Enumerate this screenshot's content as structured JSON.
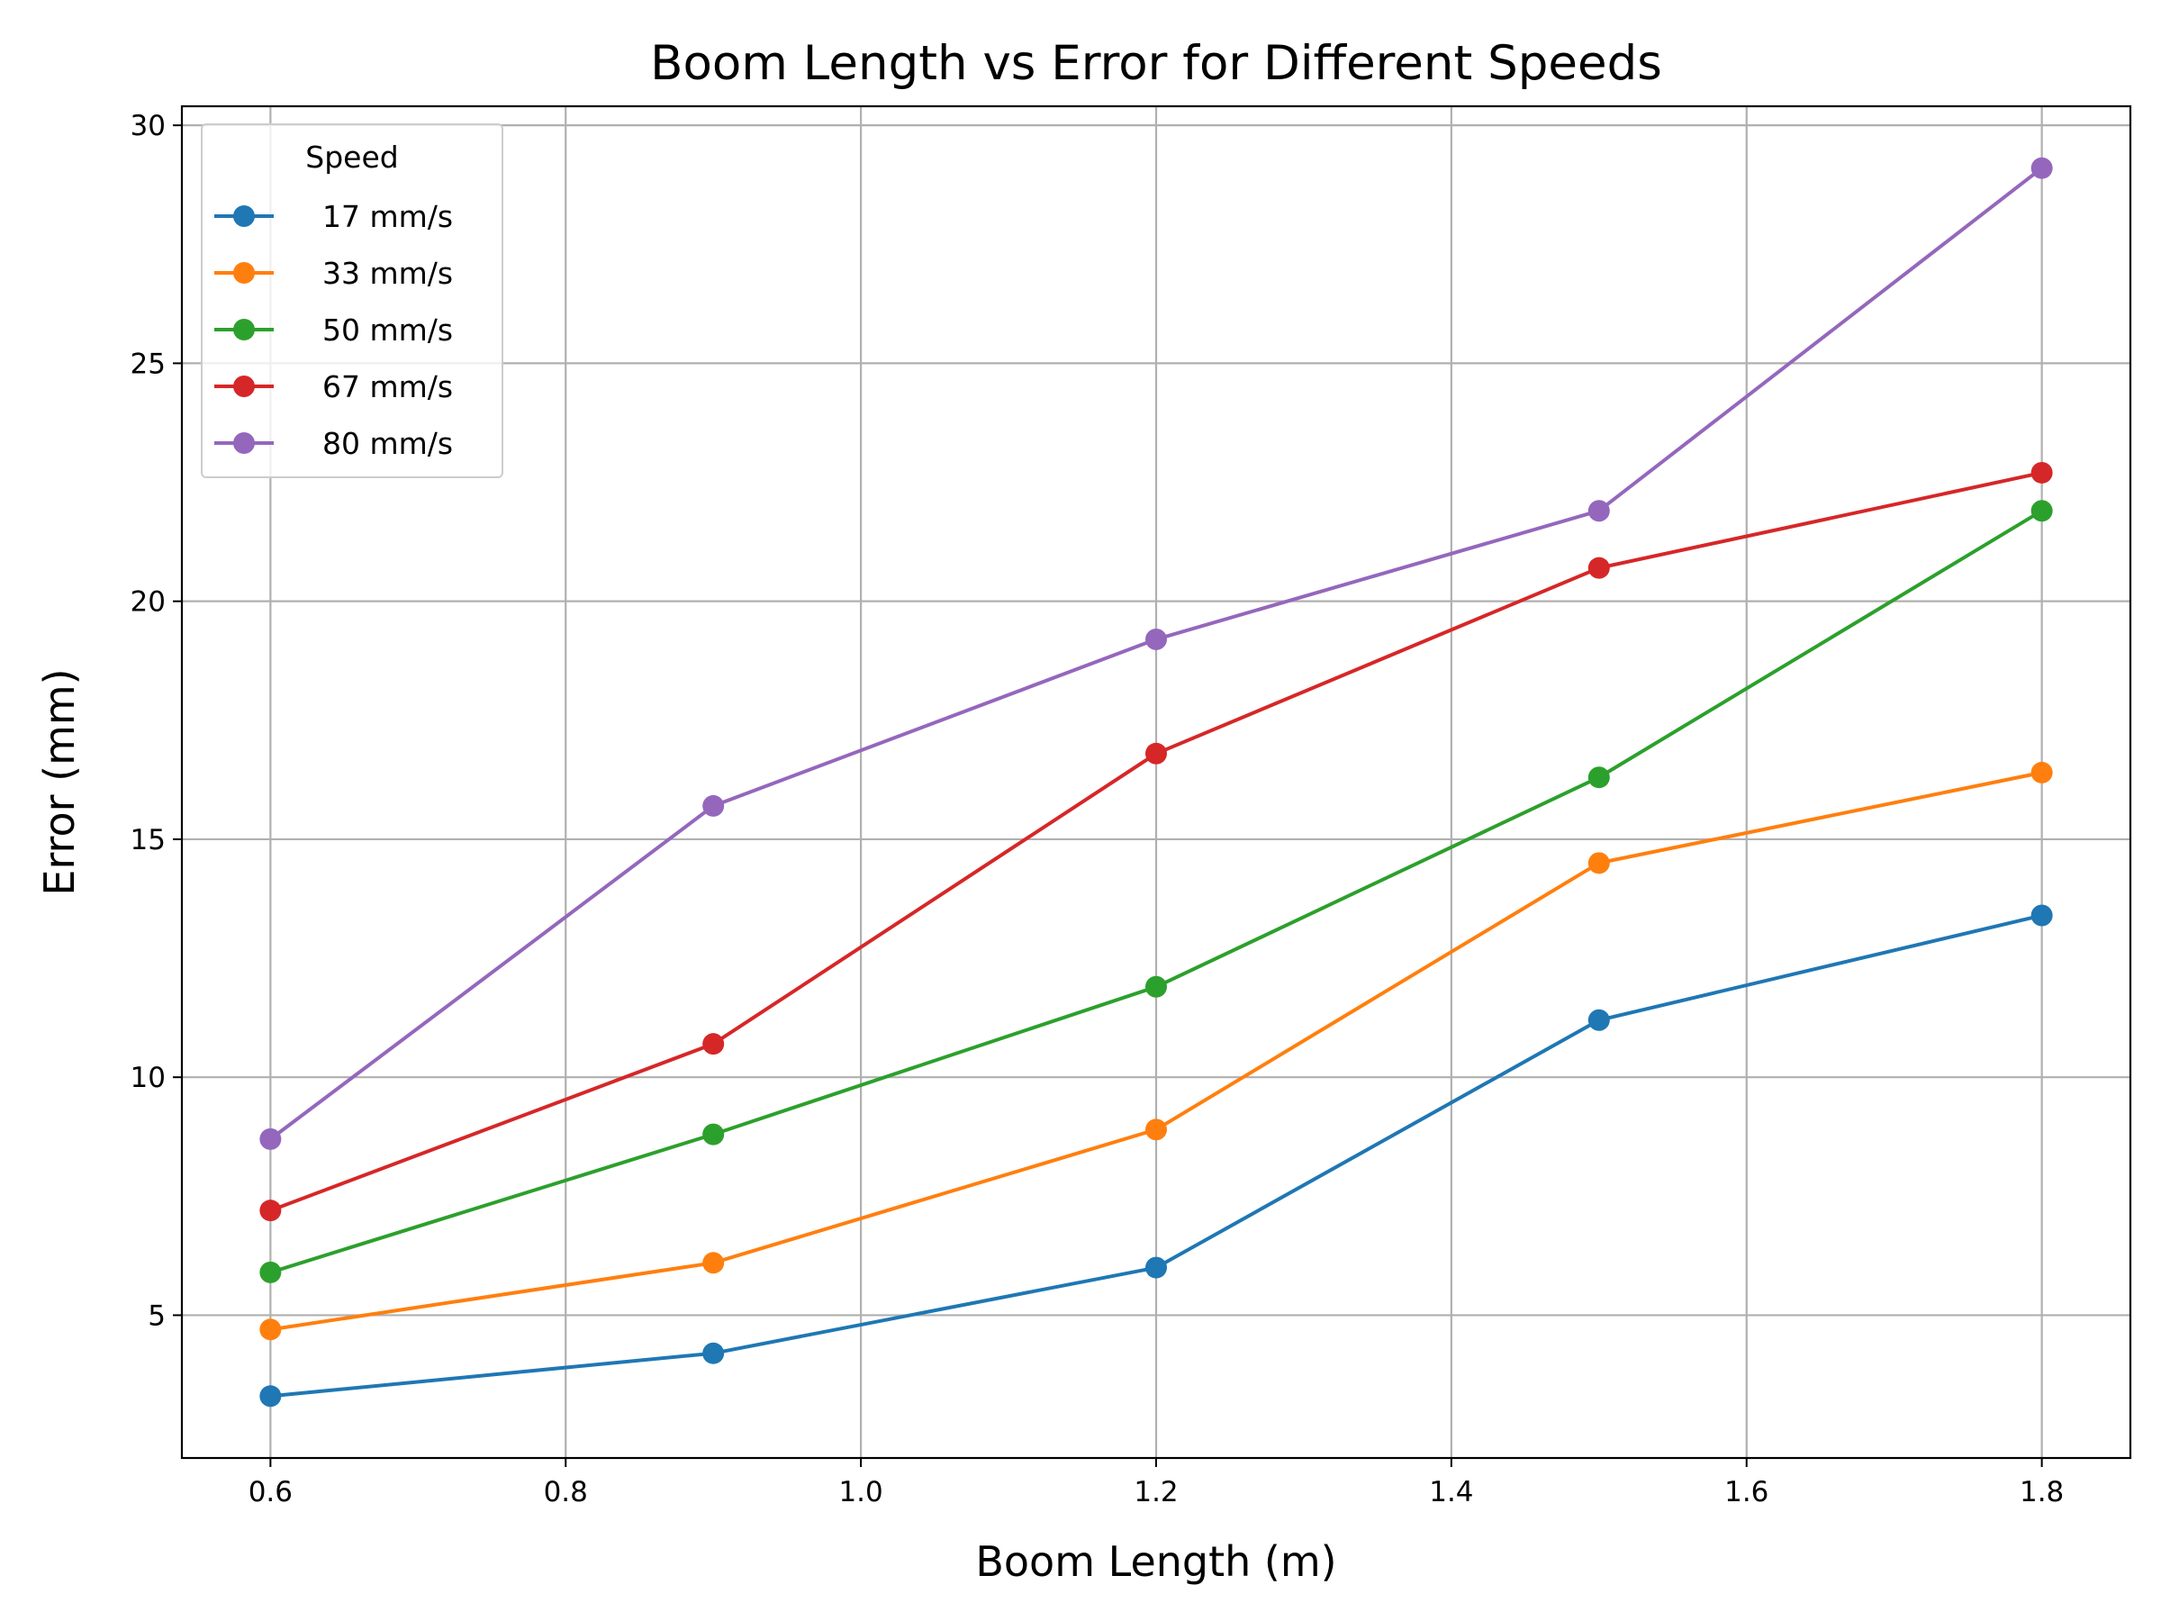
{
  "chart_data": {
    "type": "line",
    "title": "Boom Length vs Error for Different Speeds",
    "xlabel": "Boom Length (m)",
    "ylabel": "Error (mm)",
    "x": [
      0.6,
      0.9,
      1.2,
      1.5,
      1.8
    ],
    "xlim": [
      0.54,
      1.86
    ],
    "ylim": [
      2.0,
      30.4
    ],
    "xticks": [
      0.6,
      0.8,
      1.0,
      1.2,
      1.4,
      1.6,
      1.8
    ],
    "xtick_labels": [
      "0.6",
      "0.8",
      "1.0",
      "1.2",
      "1.4",
      "1.6",
      "1.8"
    ],
    "yticks": [
      5,
      10,
      15,
      20,
      25,
      30
    ],
    "ytick_labels": [
      "5",
      "10",
      "15",
      "20",
      "25",
      "30"
    ],
    "grid": true,
    "legend": {
      "title": "Speed",
      "placement": "upper-left"
    },
    "series": [
      {
        "name": "17 mm/s",
        "color": "#1f77b4",
        "values": [
          3.3,
          4.2,
          6.0,
          11.2,
          13.4
        ]
      },
      {
        "name": "33 mm/s",
        "color": "#ff7f0e",
        "values": [
          4.7,
          6.1,
          8.9,
          14.5,
          16.4
        ]
      },
      {
        "name": "50 mm/s",
        "color": "#2ca02c",
        "values": [
          5.9,
          8.8,
          11.9,
          16.3,
          21.9
        ]
      },
      {
        "name": "67 mm/s",
        "color": "#d62728",
        "values": [
          7.2,
          10.7,
          16.8,
          20.7,
          22.7
        ]
      },
      {
        "name": "80 mm/s",
        "color": "#9467bd",
        "values": [
          8.7,
          15.7,
          19.2,
          21.9,
          29.1
        ]
      }
    ]
  }
}
